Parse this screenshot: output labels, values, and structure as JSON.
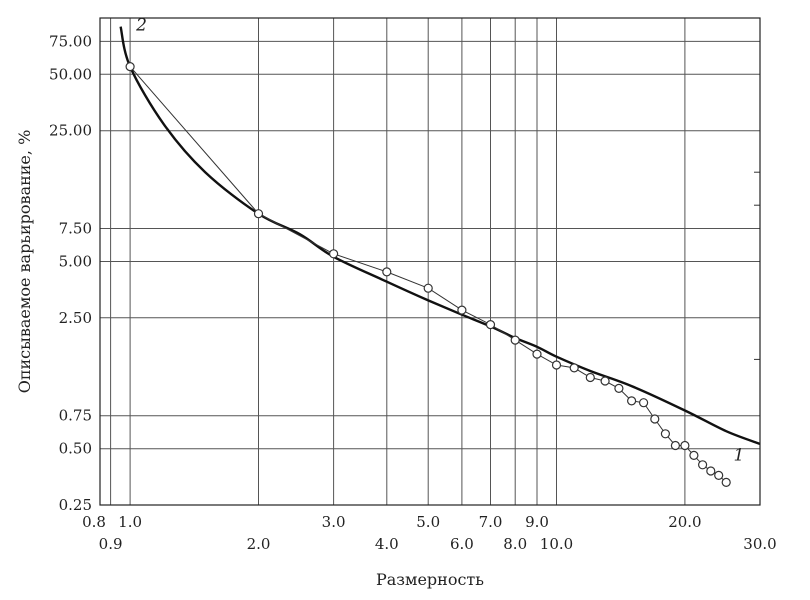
{
  "chart_data": {
    "type": "line",
    "title": "",
    "xlabel": "Размерность",
    "ylabel": "Описываемое варьирование, %",
    "x_scale": "log",
    "y_scale": "log",
    "xlim": [
      0.85,
      30
    ],
    "ylim": [
      0.25,
      100
    ],
    "grid": true,
    "x_ticks": [
      {
        "value": 0.8,
        "label": "0.8",
        "row": "upper"
      },
      {
        "value": 0.9,
        "label": "0.9",
        "row": "lower"
      },
      {
        "value": 1.0,
        "label": "1.0",
        "row": "upper"
      },
      {
        "value": 2.0,
        "label": "2.0",
        "row": "lower"
      },
      {
        "value": 3.0,
        "label": "3.0",
        "row": "upper"
      },
      {
        "value": 4.0,
        "label": "4.0",
        "row": "lower"
      },
      {
        "value": 5.0,
        "label": "5.0",
        "row": "upper"
      },
      {
        "value": 6.0,
        "label": "6.0",
        "row": "lower"
      },
      {
        "value": 7.0,
        "label": "7.0",
        "row": "upper"
      },
      {
        "value": 8.0,
        "label": "8.0",
        "row": "lower"
      },
      {
        "value": 9.0,
        "label": "9.0",
        "row": "upper"
      },
      {
        "value": 10.0,
        "label": "10.0",
        "row": "lower"
      },
      {
        "value": 20.0,
        "label": "20.0",
        "row": "upper"
      },
      {
        "value": 30.0,
        "label": "30.0",
        "row": "lower"
      }
    ],
    "x_gridlines": [
      0.9,
      1.0,
      2.0,
      3.0,
      4.0,
      5.0,
      6.0,
      7.0,
      8.0,
      9.0,
      10.0,
      20.0,
      30.0
    ],
    "y_ticks": [
      {
        "value": 0.25,
        "label": "0.25"
      },
      {
        "value": 0.5,
        "label": "0.50"
      },
      {
        "value": 0.75,
        "label": "0.75"
      },
      {
        "value": 2.5,
        "label": "2.50"
      },
      {
        "value": 5.0,
        "label": "5.00"
      },
      {
        "value": 7.5,
        "label": "7.50"
      },
      {
        "value": 25.0,
        "label": "25.00"
      },
      {
        "value": 50.0,
        "label": "50.00"
      },
      {
        "value": 75.0,
        "label": "75.00"
      }
    ],
    "series": [
      {
        "name": "1",
        "style": "smooth-fit",
        "color": "#111111",
        "x": [
          0.95,
          1.0,
          1.2,
          1.5,
          2.0,
          2.5,
          3.0,
          4.0,
          5.0,
          6.0,
          7.0,
          8.0,
          9.0,
          10.0,
          12.0,
          15.0,
          20.0,
          25.0,
          30.0
        ],
        "y": [
          90.0,
          55.0,
          27.0,
          15.0,
          9.0,
          7.0,
          5.3,
          3.9,
          3.1,
          2.6,
          2.25,
          1.95,
          1.75,
          1.55,
          1.3,
          1.08,
          0.8,
          0.62,
          0.53
        ]
      },
      {
        "name": "2",
        "style": "markers",
        "color": "#333333",
        "x": [
          1,
          2,
          3,
          4,
          5,
          6,
          7,
          8,
          9,
          10,
          11,
          12,
          13,
          14,
          15,
          16,
          17,
          18,
          19,
          20,
          21,
          22,
          23,
          24,
          25
        ],
        "y": [
          55.0,
          9.0,
          5.5,
          4.4,
          3.6,
          2.75,
          2.3,
          1.9,
          1.6,
          1.4,
          1.35,
          1.2,
          1.15,
          1.05,
          0.9,
          0.88,
          0.72,
          0.6,
          0.52,
          0.52,
          0.46,
          0.41,
          0.38,
          0.36,
          0.33
        ]
      }
    ]
  }
}
